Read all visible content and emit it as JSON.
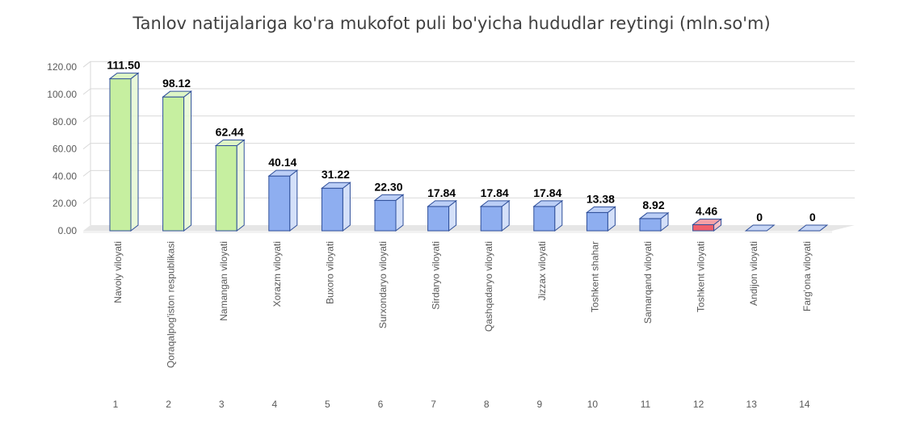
{
  "chart_data": {
    "type": "bar",
    "title": "Tanlov natijalariga ko'ra mukofot puli bo'yicha hududlar reytingi (mln.so'm)",
    "xlabel": "",
    "ylabel": "",
    "ylim": [
      0,
      120
    ],
    "yticks": [
      "0.00",
      "20.00",
      "40.00",
      "60.00",
      "80.00",
      "100.00",
      "120.00"
    ],
    "grid": true,
    "legend": "none",
    "categories": [
      "Navoiy viloyati",
      "Qoraqalpog'iston respublikasi",
      "Namangan viloyati",
      "Xorazm viloyati",
      "Buxoro viloyati",
      "Surxondaryo viloyati",
      "Sirdaryo viloyati",
      "Qashqadaryo viloyati",
      "Jizzax viloyati",
      "Toshkent shahar",
      "Samarqand viloyati",
      "Toshkent viloyati",
      "Andijon viloyati",
      "Farg'ona viloyati"
    ],
    "ranks": [
      "1",
      "2",
      "3",
      "4",
      "5",
      "6",
      "7",
      "8",
      "9",
      "10",
      "11",
      "12",
      "13",
      "14"
    ],
    "values": [
      111.5,
      98.12,
      62.44,
      40.14,
      31.22,
      22.3,
      17.84,
      17.84,
      17.84,
      13.38,
      8.92,
      4.46,
      0,
      0
    ],
    "value_labels": [
      "111.50",
      "98.12",
      "62.44",
      "40.14",
      "31.22",
      "22.30",
      "17.84",
      "17.84",
      "17.84",
      "13.38",
      "8.92",
      "4.46",
      "0",
      "0"
    ],
    "bar_colors": [
      "#c6efa0",
      "#c6efa0",
      "#c6efa0",
      "#8eaef0",
      "#8eaef0",
      "#8eaef0",
      "#8eaef0",
      "#8eaef0",
      "#8eaef0",
      "#8eaef0",
      "#8eaef0",
      "#f0606c",
      "#c7d6f5",
      "#c7d6f5"
    ],
    "edge_color": "#2f4f9a",
    "grid_color": "#d9d9d9",
    "floor_color": "#e6e6e6"
  }
}
